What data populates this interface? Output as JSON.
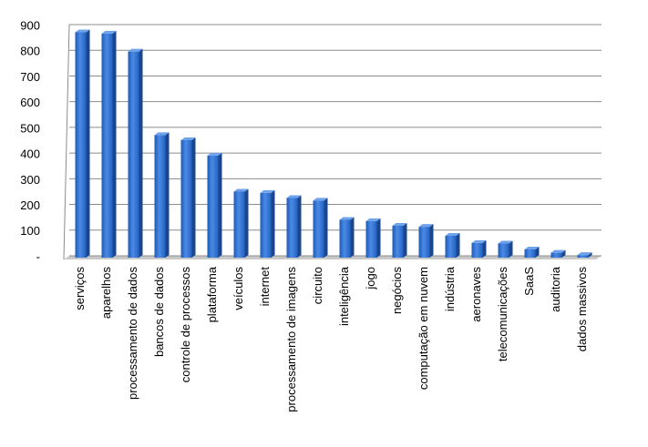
{
  "chart_data": {
    "type": "bar",
    "categories": [
      "serviços",
      "aparelhos",
      "processamento de dados",
      "bancos de dados",
      "controle de processos",
      "plataforma",
      "veículos",
      "internet",
      "processamento de imagens",
      "circuito",
      "inteligência",
      "jogo",
      "negócios",
      "computação em nuvem",
      "indústria",
      "aeronaves",
      "telecomunicações",
      "SaaS",
      "auditoria",
      "dados massivos"
    ],
    "values": [
      870,
      865,
      795,
      470,
      450,
      390,
      250,
      245,
      225,
      215,
      140,
      135,
      117,
      113,
      78,
      50,
      48,
      25,
      12,
      3
    ],
    "color": "#2e6cc9",
    "ylim": [
      0,
      900
    ],
    "yticks": [
      {
        "value": 0,
        "label": "-"
      },
      100,
      200,
      300,
      400,
      500,
      600,
      700,
      800,
      900
    ],
    "grid": true
  }
}
